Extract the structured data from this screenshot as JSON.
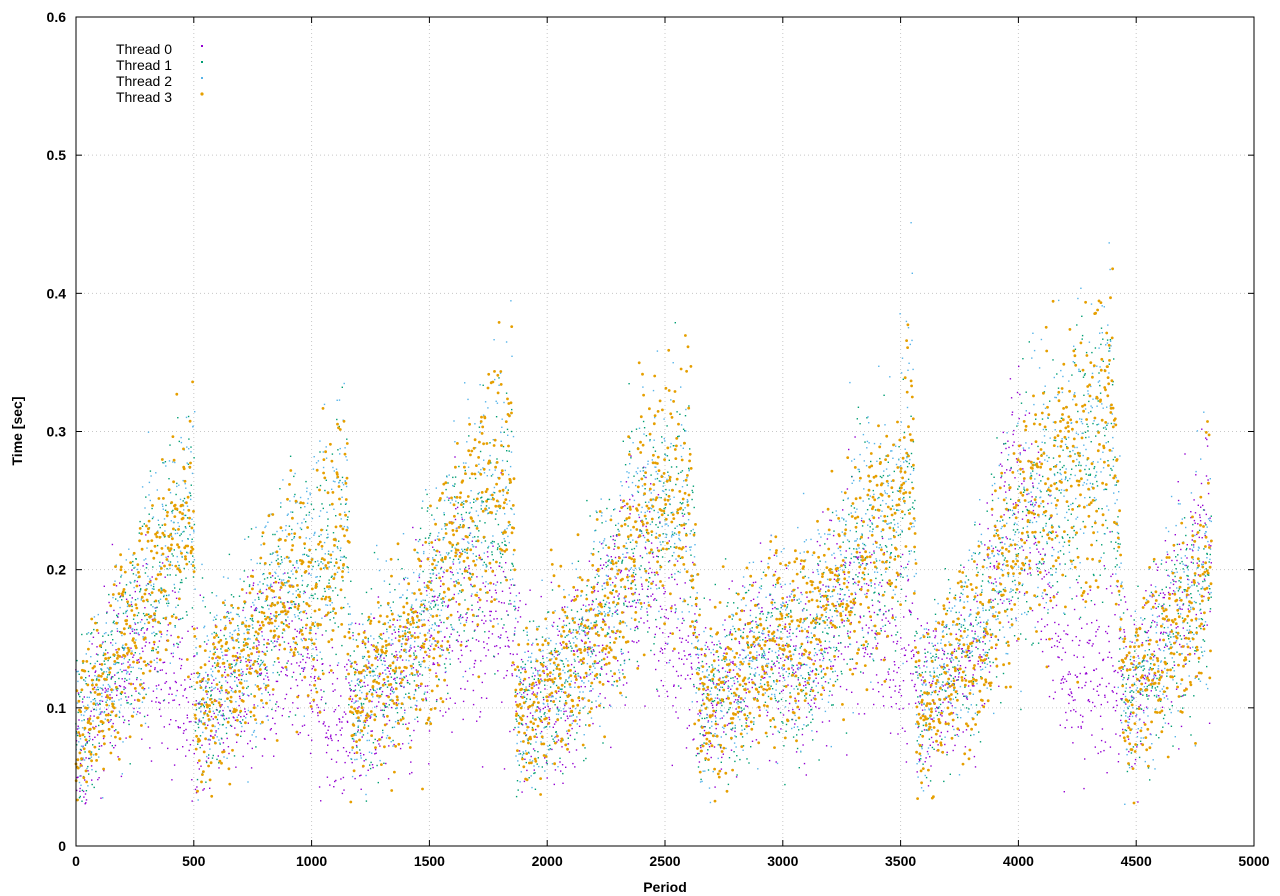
{
  "chart_data": {
    "type": "scatter",
    "title": "",
    "xlabel": "Period",
    "ylabel": "Time [sec]",
    "xlim": [
      0,
      5000
    ],
    "ylim": [
      0,
      0.6
    ],
    "x_ticks": [
      0,
      500,
      1000,
      1500,
      2000,
      2500,
      3000,
      3500,
      4000,
      4500,
      5000
    ],
    "y_ticks": [
      0,
      0.1,
      0.2,
      0.3,
      0.4,
      0.5,
      0.6
    ],
    "x_tick_labels": [
      "0",
      "500",
      "1000",
      "1500",
      "2000",
      "2500",
      "3000",
      "3500",
      "4000",
      "4500",
      "5000"
    ],
    "y_tick_labels": [
      "0",
      "0.1",
      "0.2",
      "0.3",
      "0.4",
      "0.5",
      "0.6"
    ],
    "grid": true,
    "legend_position": "top-left",
    "series": [
      {
        "name": "Thread 0",
        "color": "#9400d3",
        "marker": "dot",
        "trend": [
          [
            0,
            0.07
          ],
          [
            100,
            0.11
          ],
          [
            200,
            0.13
          ],
          [
            300,
            0.15
          ],
          [
            400,
            0.12
          ],
          [
            500,
            0.09
          ],
          [
            700,
            0.12
          ],
          [
            900,
            0.15
          ],
          [
            1000,
            0.12
          ],
          [
            1100,
            0.09
          ],
          [
            1200,
            0.1
          ],
          [
            1400,
            0.13
          ],
          [
            1600,
            0.17
          ],
          [
            1800,
            0.16
          ],
          [
            1900,
            0.11
          ],
          [
            2000,
            0.1
          ],
          [
            2200,
            0.15
          ],
          [
            2400,
            0.2
          ],
          [
            2600,
            0.13
          ],
          [
            2700,
            0.1
          ],
          [
            2900,
            0.15
          ],
          [
            3100,
            0.13
          ],
          [
            3300,
            0.18
          ],
          [
            3500,
            0.14
          ],
          [
            3600,
            0.11
          ],
          [
            3800,
            0.13
          ],
          [
            4000,
            0.28
          ],
          [
            4100,
            0.22
          ],
          [
            4200,
            0.12
          ],
          [
            4400,
            0.13
          ],
          [
            4500,
            0.12
          ],
          [
            4700,
            0.17
          ],
          [
            4820,
            0.24
          ]
        ]
      },
      {
        "name": "Thread 1",
        "color": "#009e73",
        "marker": "dot",
        "trend": [
          [
            0,
            0.09
          ],
          [
            200,
            0.14
          ],
          [
            400,
            0.21
          ],
          [
            500,
            0.24
          ],
          [
            510,
            0.09
          ],
          [
            700,
            0.14
          ],
          [
            900,
            0.19
          ],
          [
            1000,
            0.19
          ],
          [
            1150,
            0.22
          ],
          [
            1170,
            0.1
          ],
          [
            1400,
            0.14
          ],
          [
            1600,
            0.21
          ],
          [
            1850,
            0.25
          ],
          [
            1870,
            0.09
          ],
          [
            2100,
            0.13
          ],
          [
            2300,
            0.19
          ],
          [
            2400,
            0.23
          ],
          [
            2600,
            0.24
          ],
          [
            2650,
            0.1
          ],
          [
            2900,
            0.14
          ],
          [
            3100,
            0.12
          ],
          [
            3300,
            0.2
          ],
          [
            3500,
            0.22
          ],
          [
            3550,
            0.3
          ],
          [
            3570,
            0.1
          ],
          [
            3800,
            0.15
          ],
          [
            4000,
            0.22
          ],
          [
            4200,
            0.26
          ],
          [
            4400,
            0.3
          ],
          [
            4450,
            0.1
          ],
          [
            4700,
            0.17
          ],
          [
            4820,
            0.2
          ]
        ]
      },
      {
        "name": "Thread 2",
        "color": "#56b4e9",
        "marker": "dot",
        "trend": [
          [
            0,
            0.09
          ],
          [
            200,
            0.14
          ],
          [
            400,
            0.22
          ],
          [
            500,
            0.25
          ],
          [
            510,
            0.1
          ],
          [
            700,
            0.14
          ],
          [
            900,
            0.2
          ],
          [
            1000,
            0.2
          ],
          [
            1150,
            0.25
          ],
          [
            1170,
            0.1
          ],
          [
            1400,
            0.14
          ],
          [
            1600,
            0.22
          ],
          [
            1850,
            0.28
          ],
          [
            1870,
            0.09
          ],
          [
            2100,
            0.13
          ],
          [
            2300,
            0.19
          ],
          [
            2400,
            0.25
          ],
          [
            2600,
            0.25
          ],
          [
            2650,
            0.1
          ],
          [
            2900,
            0.15
          ],
          [
            3100,
            0.15
          ],
          [
            3300,
            0.21
          ],
          [
            3500,
            0.25
          ],
          [
            3550,
            0.35
          ],
          [
            3570,
            0.1
          ],
          [
            3800,
            0.15
          ],
          [
            4000,
            0.23
          ],
          [
            4200,
            0.27
          ],
          [
            4400,
            0.33
          ],
          [
            4450,
            0.1
          ],
          [
            4700,
            0.17
          ],
          [
            4820,
            0.2
          ]
        ]
      },
      {
        "name": "Thread 3",
        "color": "#e69f00",
        "marker": "circle",
        "trend": [
          [
            0,
            0.08
          ],
          [
            200,
            0.14
          ],
          [
            400,
            0.22
          ],
          [
            500,
            0.24
          ],
          [
            510,
            0.09
          ],
          [
            700,
            0.14
          ],
          [
            900,
            0.19
          ],
          [
            1000,
            0.17
          ],
          [
            1150,
            0.25
          ],
          [
            1170,
            0.1
          ],
          [
            1400,
            0.13
          ],
          [
            1600,
            0.21
          ],
          [
            1850,
            0.28
          ],
          [
            1870,
            0.09
          ],
          [
            2100,
            0.13
          ],
          [
            2300,
            0.18
          ],
          [
            2400,
            0.25
          ],
          [
            2600,
            0.26
          ],
          [
            2650,
            0.09
          ],
          [
            2900,
            0.14
          ],
          [
            3100,
            0.16
          ],
          [
            3300,
            0.2
          ],
          [
            3500,
            0.25
          ],
          [
            3550,
            0.35
          ],
          [
            3570,
            0.09
          ],
          [
            3800,
            0.15
          ],
          [
            4000,
            0.22
          ],
          [
            4200,
            0.27
          ],
          [
            4400,
            0.32
          ],
          [
            4450,
            0.1
          ],
          [
            4700,
            0.16
          ],
          [
            4820,
            0.2
          ]
        ]
      }
    ]
  }
}
